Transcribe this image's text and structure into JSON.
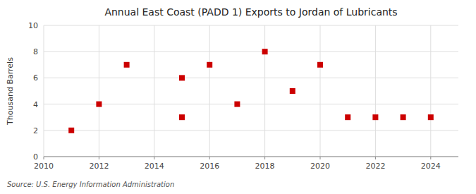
{
  "chart_data": {
    "type": "scatter",
    "title": "Annual East Coast (PADD 1) Exports to Jordan of Lubricants",
    "ylabel": "Thousand Barrels",
    "source": "Source: U.S. Energy Information Administration",
    "x": [
      2011,
      2012,
      2013,
      2015,
      2015,
      2016,
      2017,
      2018,
      2019,
      2020,
      2021,
      2022,
      2023,
      2024
    ],
    "values": [
      2,
      4,
      7,
      3,
      6,
      7,
      4,
      8,
      5,
      7,
      3,
      3,
      3,
      3
    ],
    "xlim": [
      2010,
      2025
    ],
    "ylim": [
      0,
      10
    ],
    "xticks": [
      2010,
      2012,
      2014,
      2016,
      2018,
      2020,
      2022,
      2024
    ],
    "yticks": [
      0,
      2,
      4,
      6,
      8,
      10
    ],
    "color": "#cc0000",
    "marker": "square",
    "grid": true
  }
}
